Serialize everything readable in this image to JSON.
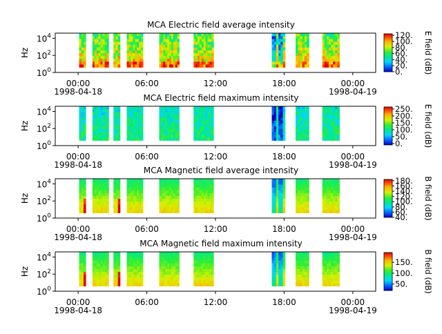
{
  "chart_data": [
    {
      "type": "heatmap",
      "title": "MCA  Electric field average intensity",
      "ylabel": "Hz",
      "y_scale": "log",
      "ylim": [
        1,
        40000
      ],
      "y_ticks": [
        {
          "value": 1,
          "base": "10",
          "exp": "0"
        },
        {
          "value": 100,
          "base": "10",
          "exp": "2"
        },
        {
          "value": 10000,
          "base": "10",
          "exp": "4"
        }
      ],
      "xlim": [
        "1998-04-17T22:00",
        "1998-04-19T02:00"
      ],
      "x_ticks": [
        {
          "value": "1998-04-18T00:00",
          "time": "00:00",
          "date": "1998-04-18"
        },
        {
          "value": "1998-04-18T06:00",
          "time": "06:00",
          "date": ""
        },
        {
          "value": "1998-04-18T12:00",
          "time": "12:00",
          "date": ""
        },
        {
          "value": "1998-04-18T18:00",
          "time": "18:00",
          "date": ""
        },
        {
          "value": "1998-04-19T00:00",
          "time": "00:00",
          "date": "1998-04-19"
        }
      ],
      "colorbar": {
        "label": "E field (dB)",
        "range": [
          0,
          125
        ],
        "ticks": [
          "0.",
          "20.",
          "40.",
          "60.",
          "80.",
          "100.",
          "120."
        ]
      },
      "data_intervals": [
        [
          "1998-04-18T00:05",
          "1998-04-18T00:40"
        ],
        [
          "1998-04-18T01:15",
          "1998-04-18T02:40"
        ],
        [
          "1998-04-18T03:05",
          "1998-04-18T03:40"
        ],
        [
          "1998-04-18T04:15",
          "1998-04-18T05:40"
        ],
        [
          "1998-04-18T07:05",
          "1998-04-18T08:50"
        ],
        [
          "1998-04-18T10:05",
          "1998-04-18T11:50"
        ],
        [
          "1998-04-18T16:55",
          "1998-04-18T18:05"
        ],
        [
          "1998-04-18T19:00",
          "1998-04-18T20:10"
        ],
        [
          "1998-04-18T21:20",
          "1998-04-18T22:50"
        ]
      ]
    },
    {
      "type": "heatmap",
      "title": "MCA  Electric field maximum intensity",
      "ylabel": "Hz",
      "y_scale": "log",
      "ylim": [
        1,
        40000
      ],
      "y_ticks": [
        {
          "value": 1,
          "base": "10",
          "exp": "0"
        },
        {
          "value": 100,
          "base": "10",
          "exp": "2"
        },
        {
          "value": 10000,
          "base": "10",
          "exp": "4"
        }
      ],
      "xlim": [
        "1998-04-17T22:00",
        "1998-04-19T02:00"
      ],
      "x_ticks": [
        {
          "value": "1998-04-18T00:00",
          "time": "00:00",
          "date": "1998-04-18"
        },
        {
          "value": "1998-04-18T06:00",
          "time": "06:00",
          "date": ""
        },
        {
          "value": "1998-04-18T12:00",
          "time": "12:00",
          "date": ""
        },
        {
          "value": "1998-04-18T18:00",
          "time": "18:00",
          "date": ""
        },
        {
          "value": "1998-04-19T00:00",
          "time": "00:00",
          "date": "1998-04-19"
        }
      ],
      "colorbar": {
        "label": "E field (dB)",
        "range": [
          -10,
          265
        ],
        "ticks": [
          "0.",
          "50.",
          "100.",
          "150.",
          "200.",
          "250."
        ]
      },
      "data_intervals": [
        [
          "1998-04-18T00:05",
          "1998-04-18T00:40"
        ],
        [
          "1998-04-18T01:15",
          "1998-04-18T02:40"
        ],
        [
          "1998-04-18T03:05",
          "1998-04-18T03:40"
        ],
        [
          "1998-04-18T04:15",
          "1998-04-18T05:40"
        ],
        [
          "1998-04-18T07:05",
          "1998-04-18T08:50"
        ],
        [
          "1998-04-18T10:05",
          "1998-04-18T11:50"
        ],
        [
          "1998-04-18T16:55",
          "1998-04-18T18:05"
        ],
        [
          "1998-04-18T19:00",
          "1998-04-18T20:10"
        ],
        [
          "1998-04-18T21:20",
          "1998-04-18T22:50"
        ]
      ]
    },
    {
      "type": "heatmap",
      "title": "MCA  Magnetic field average intensity",
      "ylabel": "Hz",
      "y_scale": "log",
      "ylim": [
        1,
        40000
      ],
      "y_ticks": [
        {
          "value": 1,
          "base": "10",
          "exp": "0"
        },
        {
          "value": 100,
          "base": "10",
          "exp": "2"
        },
        {
          "value": 10000,
          "base": "10",
          "exp": "4"
        }
      ],
      "xlim": [
        "1998-04-17T22:00",
        "1998-04-19T02:00"
      ],
      "x_ticks": [
        {
          "value": "1998-04-18T00:00",
          "time": "00:00",
          "date": "1998-04-18"
        },
        {
          "value": "1998-04-18T06:00",
          "time": "06:00",
          "date": ""
        },
        {
          "value": "1998-04-18T12:00",
          "time": "12:00",
          "date": ""
        },
        {
          "value": "1998-04-18T18:00",
          "time": "18:00",
          "date": ""
        },
        {
          "value": "1998-04-19T00:00",
          "time": "00:00",
          "date": "1998-04-19"
        }
      ],
      "colorbar": {
        "label": "B field (dB)",
        "range": [
          40,
          185
        ],
        "ticks": [
          "40.",
          "60.",
          "80.",
          "100.",
          "120.",
          "140.",
          "160.",
          "180."
        ]
      },
      "data_intervals": [
        [
          "1998-04-18T00:05",
          "1998-04-18T00:40"
        ],
        [
          "1998-04-18T01:15",
          "1998-04-18T02:40"
        ],
        [
          "1998-04-18T03:05",
          "1998-04-18T03:40"
        ],
        [
          "1998-04-18T04:15",
          "1998-04-18T05:40"
        ],
        [
          "1998-04-18T07:05",
          "1998-04-18T08:50"
        ],
        [
          "1998-04-18T10:05",
          "1998-04-18T11:50"
        ],
        [
          "1998-04-18T16:55",
          "1998-04-18T18:05"
        ],
        [
          "1998-04-18T19:00",
          "1998-04-18T20:10"
        ],
        [
          "1998-04-18T21:20",
          "1998-04-18T22:50"
        ]
      ]
    },
    {
      "type": "heatmap",
      "title": "MCA  Magnetic field maximum intensity",
      "ylabel": "Hz",
      "y_scale": "log",
      "ylim": [
        1,
        40000
      ],
      "y_ticks": [
        {
          "value": 1,
          "base": "10",
          "exp": "0"
        },
        {
          "value": 100,
          "base": "10",
          "exp": "2"
        },
        {
          "value": 10000,
          "base": "10",
          "exp": "4"
        }
      ],
      "xlim": [
        "1998-04-17T22:00",
        "1998-04-19T02:00"
      ],
      "x_ticks": [
        {
          "value": "1998-04-18T00:00",
          "time": "00:00",
          "date": "1998-04-18"
        },
        {
          "value": "1998-04-18T06:00",
          "time": "06:00",
          "date": ""
        },
        {
          "value": "1998-04-18T12:00",
          "time": "12:00",
          "date": ""
        },
        {
          "value": "1998-04-18T18:00",
          "time": "18:00",
          "date": ""
        },
        {
          "value": "1998-04-19T00:00",
          "time": "00:00",
          "date": "1998-04-19"
        }
      ],
      "colorbar": {
        "label": "B field (dB)",
        "range": [
          20,
          195
        ],
        "ticks": [
          "50.",
          "100.",
          "150."
        ]
      },
      "data_intervals": [
        [
          "1998-04-18T00:05",
          "1998-04-18T00:40"
        ],
        [
          "1998-04-18T01:15",
          "1998-04-18T02:40"
        ],
        [
          "1998-04-18T03:05",
          "1998-04-18T03:40"
        ],
        [
          "1998-04-18T04:15",
          "1998-04-18T05:40"
        ],
        [
          "1998-04-18T07:05",
          "1998-04-18T08:50"
        ],
        [
          "1998-04-18T10:05",
          "1998-04-18T11:50"
        ],
        [
          "1998-04-18T16:55",
          "1998-04-18T18:05"
        ],
        [
          "1998-04-18T19:00",
          "1998-04-18T20:10"
        ],
        [
          "1998-04-18T21:20",
          "1998-04-18T22:50"
        ]
      ]
    }
  ]
}
